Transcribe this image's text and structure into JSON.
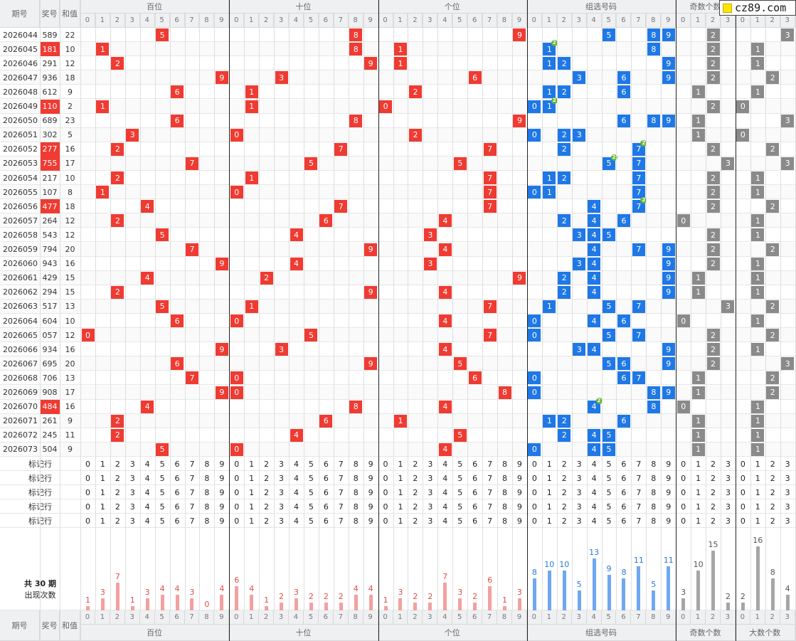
{
  "header": {
    "col_issue": "期号",
    "col_prize": "奖号",
    "col_sum": "和值",
    "groups": [
      "百位",
      "十位",
      "个位",
      "组选号码",
      "奇数个数",
      "大数个数"
    ],
    "digits": [
      "0",
      "1",
      "2",
      "3",
      "4",
      "5",
      "6",
      "7",
      "8",
      "9"
    ],
    "digits4": [
      "0",
      "1",
      "2",
      "3"
    ]
  },
  "logo": {
    "text": "cz89.com"
  },
  "rows": [
    {
      "issue": "2026044",
      "prize": "589",
      "sum": "22",
      "red": false,
      "dup": null,
      "odd": 2,
      "big": 3
    },
    {
      "issue": "2026045",
      "prize": "181",
      "sum": "10",
      "red": true,
      "dup": 1,
      "odd": 2,
      "big": 1
    },
    {
      "issue": "2026046",
      "prize": "291",
      "sum": "12",
      "red": false,
      "dup": null,
      "odd": 2,
      "big": 1
    },
    {
      "issue": "2026047",
      "prize": "936",
      "sum": "18",
      "red": false,
      "dup": null,
      "odd": 2,
      "big": 2
    },
    {
      "issue": "2026048",
      "prize": "612",
      "sum": "9",
      "red": false,
      "dup": null,
      "odd": 1,
      "big": 1
    },
    {
      "issue": "2026049",
      "prize": "110",
      "sum": "2",
      "red": true,
      "dup": 1,
      "odd": 2,
      "big": 0
    },
    {
      "issue": "2026050",
      "prize": "689",
      "sum": "23",
      "red": false,
      "dup": null,
      "odd": 1,
      "big": 3
    },
    {
      "issue": "2026051",
      "prize": "302",
      "sum": "5",
      "red": false,
      "dup": null,
      "odd": 1,
      "big": 0
    },
    {
      "issue": "2026052",
      "prize": "277",
      "sum": "16",
      "red": true,
      "dup": 7,
      "odd": 2,
      "big": 2
    },
    {
      "issue": "2026053",
      "prize": "755",
      "sum": "17",
      "red": true,
      "dup": 5,
      "odd": 3,
      "big": 3
    },
    {
      "issue": "2026054",
      "prize": "217",
      "sum": "10",
      "red": false,
      "dup": null,
      "odd": 2,
      "big": 1
    },
    {
      "issue": "2026055",
      "prize": "107",
      "sum": "8",
      "red": false,
      "dup": null,
      "odd": 2,
      "big": 1
    },
    {
      "issue": "2026056",
      "prize": "477",
      "sum": "18",
      "red": true,
      "dup": 7,
      "odd": 2,
      "big": 2
    },
    {
      "issue": "2026057",
      "prize": "264",
      "sum": "12",
      "red": false,
      "dup": null,
      "odd": 0,
      "big": 1
    },
    {
      "issue": "2026058",
      "prize": "543",
      "sum": "12",
      "red": false,
      "dup": null,
      "odd": 2,
      "big": 1
    },
    {
      "issue": "2026059",
      "prize": "794",
      "sum": "20",
      "red": false,
      "dup": null,
      "odd": 2,
      "big": 2
    },
    {
      "issue": "2026060",
      "prize": "943",
      "sum": "16",
      "red": false,
      "dup": null,
      "odd": 2,
      "big": 1
    },
    {
      "issue": "2026061",
      "prize": "429",
      "sum": "15",
      "red": false,
      "dup": null,
      "odd": 1,
      "big": 1
    },
    {
      "issue": "2026062",
      "prize": "294",
      "sum": "15",
      "red": false,
      "dup": null,
      "odd": 1,
      "big": 1
    },
    {
      "issue": "2026063",
      "prize": "517",
      "sum": "13",
      "red": false,
      "dup": null,
      "odd": 3,
      "big": 2
    },
    {
      "issue": "2026064",
      "prize": "604",
      "sum": "10",
      "red": false,
      "dup": null,
      "odd": 0,
      "big": 1
    },
    {
      "issue": "2026065",
      "prize": "057",
      "sum": "12",
      "red": false,
      "dup": null,
      "odd": 2,
      "big": 2
    },
    {
      "issue": "2026066",
      "prize": "934",
      "sum": "16",
      "red": false,
      "dup": null,
      "odd": 2,
      "big": 1
    },
    {
      "issue": "2026067",
      "prize": "695",
      "sum": "20",
      "red": false,
      "dup": null,
      "odd": 2,
      "big": 3
    },
    {
      "issue": "2026068",
      "prize": "706",
      "sum": "13",
      "red": false,
      "dup": null,
      "odd": 1,
      "big": 2
    },
    {
      "issue": "2026069",
      "prize": "908",
      "sum": "17",
      "red": false,
      "dup": null,
      "odd": 1,
      "big": 2
    },
    {
      "issue": "2026070",
      "prize": "484",
      "sum": "16",
      "red": true,
      "dup": 4,
      "odd": 0,
      "big": 1
    },
    {
      "issue": "2026071",
      "prize": "261",
      "sum": "9",
      "red": false,
      "dup": null,
      "odd": 1,
      "big": 1
    },
    {
      "issue": "2026072",
      "prize": "245",
      "sum": "11",
      "red": false,
      "dup": null,
      "odd": 1,
      "big": 1
    },
    {
      "issue": "2026073",
      "prize": "504",
      "sum": "9",
      "red": false,
      "dup": null,
      "odd": 1,
      "big": 1
    }
  ],
  "marker_rows": {
    "label": "标记行",
    "count": 5
  },
  "dup_badge": "2",
  "stats": {
    "line1": "共 30 期",
    "line2": "出现次数",
    "hundreds": [
      1,
      3,
      7,
      1,
      3,
      4,
      4,
      3,
      0,
      4
    ],
    "tens": [
      6,
      4,
      1,
      2,
      3,
      2,
      2,
      2,
      4,
      4
    ],
    "units": [
      1,
      3,
      2,
      2,
      7,
      3,
      2,
      6,
      1,
      3
    ],
    "group": [
      8,
      10,
      10,
      5,
      13,
      9,
      8,
      11,
      5,
      11
    ],
    "odd": [
      3,
      10,
      15,
      2
    ],
    "big": [
      2,
      16,
      8,
      4
    ]
  },
  "colors": {
    "red": "#ef3b32",
    "blue": "#1f78e6",
    "gray": "#8a8a8a",
    "pink_bar": "#f4a0a0",
    "blue_bar": "#6fa8f0",
    "gray_bar": "#a6a6a6",
    "badge": "#64b436"
  },
  "chart_data": {
    "type": "bar",
    "series": [
      {
        "name": "百位",
        "categories": [
          "0",
          "1",
          "2",
          "3",
          "4",
          "5",
          "6",
          "7",
          "8",
          "9"
        ],
        "values": [
          1,
          3,
          7,
          1,
          3,
          4,
          4,
          3,
          0,
          4
        ]
      },
      {
        "name": "十位",
        "categories": [
          "0",
          "1",
          "2",
          "3",
          "4",
          "5",
          "6",
          "7",
          "8",
          "9"
        ],
        "values": [
          6,
          4,
          1,
          2,
          3,
          2,
          2,
          2,
          4,
          4
        ]
      },
      {
        "name": "个位",
        "categories": [
          "0",
          "1",
          "2",
          "3",
          "4",
          "5",
          "6",
          "7",
          "8",
          "9"
        ],
        "values": [
          1,
          3,
          2,
          2,
          7,
          3,
          2,
          6,
          1,
          3
        ]
      },
      {
        "name": "组选号码",
        "categories": [
          "0",
          "1",
          "2",
          "3",
          "4",
          "5",
          "6",
          "7",
          "8",
          "9"
        ],
        "values": [
          8,
          10,
          10,
          5,
          13,
          9,
          8,
          11,
          5,
          11
        ]
      },
      {
        "name": "奇数个数",
        "categories": [
          "0",
          "1",
          "2",
          "3"
        ],
        "values": [
          3,
          10,
          15,
          2
        ]
      },
      {
        "name": "大数个数",
        "categories": [
          "0",
          "1",
          "2",
          "3"
        ],
        "values": [
          2,
          16,
          8,
          4
        ]
      }
    ]
  }
}
